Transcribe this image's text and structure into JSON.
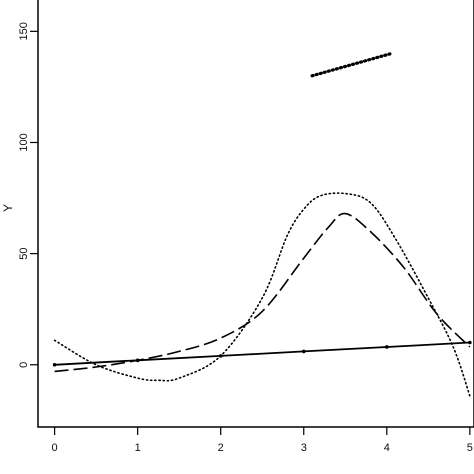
{
  "chart_data": {
    "type": "line",
    "title": "",
    "xlabel": "",
    "ylabel": "Y",
    "xlim": [
      -0.2,
      5.05
    ],
    "ylim": [
      -28,
      165
    ],
    "x_ticks": [
      0,
      1,
      2,
      3,
      4,
      5
    ],
    "y_ticks": [
      0,
      50,
      100,
      150
    ],
    "grid": false,
    "series": [
      {
        "style": "solid",
        "x": [
          0,
          1,
          2,
          3,
          4,
          5
        ],
        "y": [
          0,
          2,
          4,
          6,
          8,
          10
        ]
      },
      {
        "style": "dashed",
        "x": [
          0,
          0.5,
          1,
          1.5,
          2,
          2.5,
          3,
          3.3,
          3.5,
          3.8,
          4.2,
          4.6,
          5
        ],
        "y": [
          -3,
          -1,
          2,
          6,
          12,
          24,
          48,
          62,
          68,
          60,
          44,
          23,
          8
        ]
      },
      {
        "style": "dotted",
        "x": [
          0,
          0.5,
          1,
          1.25,
          1.5,
          2,
          2.5,
          2.8,
          3,
          3.2,
          3.5,
          3.8,
          4.1,
          4.5,
          4.8,
          5
        ],
        "y": [
          11,
          0,
          -6,
          -7,
          -6,
          4,
          30,
          58,
          70,
          76,
          77,
          73,
          57,
          30,
          8,
          -14
        ]
      },
      {
        "style": "dotted-heavy",
        "x": [
          3.1,
          4.05
        ],
        "y": [
          130,
          140
        ]
      }
    ]
  }
}
